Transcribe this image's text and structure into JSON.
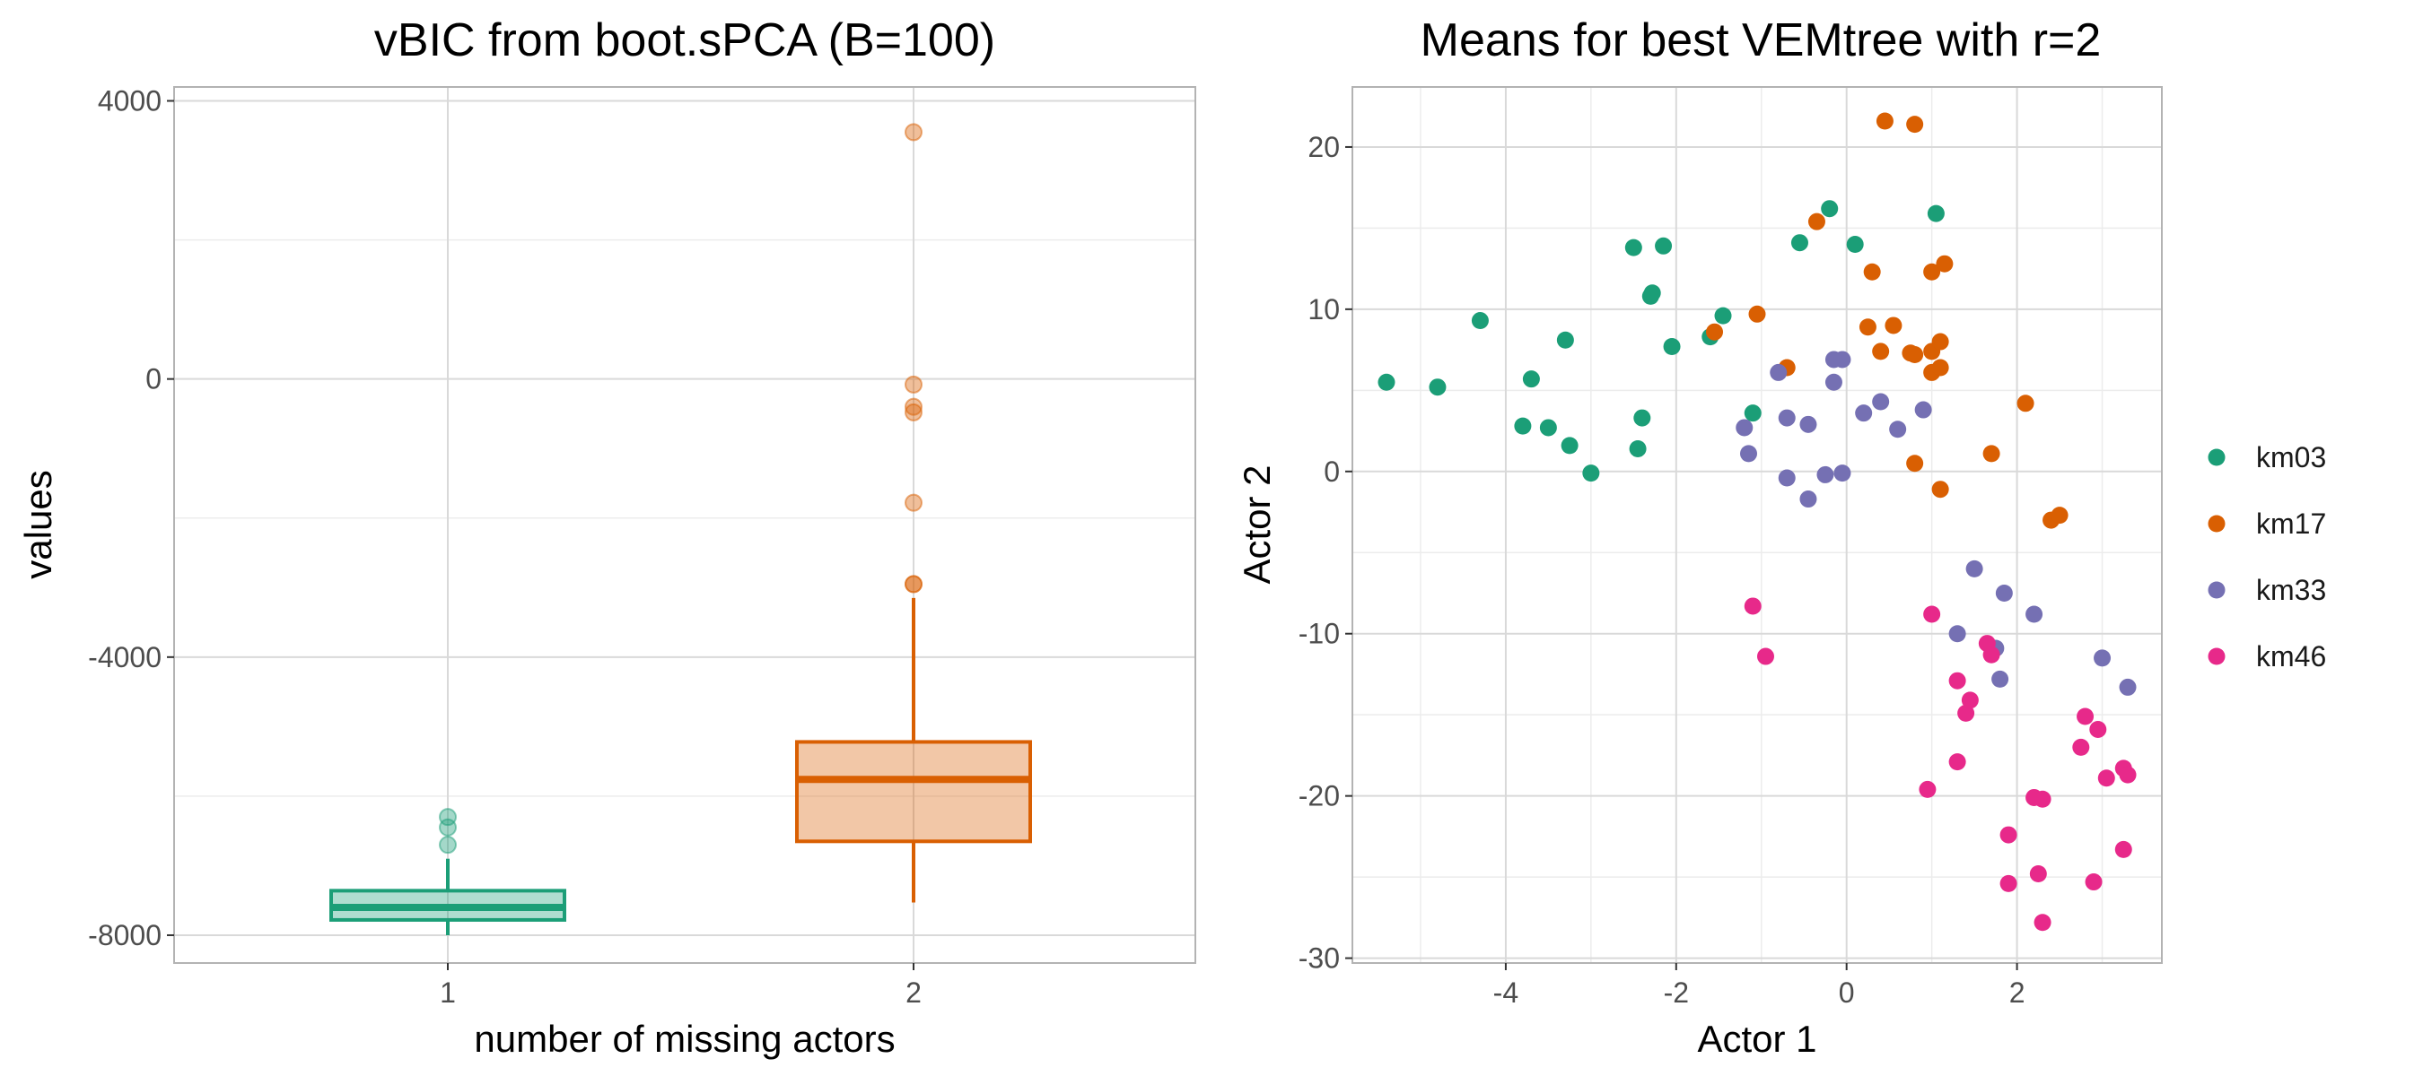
{
  "chart_data": [
    {
      "type": "box",
      "title": "vBIC from boot.sPCA (B=100)",
      "xlabel": "number of missing actors",
      "ylabel": "values",
      "categories": [
        "1",
        "2"
      ],
      "ylim": [
        -8400,
        4200
      ],
      "yticks": [
        4000,
        0,
        -4000,
        -8000
      ],
      "ytick_labels": [
        "4000",
        "0",
        "-4000",
        "-8000"
      ],
      "grid": true,
      "boxes": [
        {
          "category": "1",
          "color": "#1b9e77",
          "min": -8000,
          "q1": -7780,
          "median": -7600,
          "q3": -7360,
          "max": -6900,
          "outliers": [
            -6300,
            -6450,
            -6700
          ]
        },
        {
          "category": "2",
          "color": "#d95f02",
          "min": -7530,
          "q1": -6650,
          "median": -5760,
          "q3": -5220,
          "max": -3150,
          "outliers": [
            3550,
            -80,
            -400,
            -480,
            -1780,
            -2950,
            -2950
          ]
        }
      ]
    },
    {
      "type": "scatter",
      "title": "Means for best VEMtree with r=2",
      "xlabel": "Actor 1",
      "ylabel": "Actor 2",
      "xlim": [
        -5.8,
        3.7
      ],
      "ylim": [
        -30.3,
        23.7
      ],
      "xticks": [
        -4,
        -2,
        0,
        2
      ],
      "xtick_labels": [
        "-4",
        "-2",
        "0",
        "2"
      ],
      "yticks": [
        20,
        10,
        0,
        -10,
        -20,
        -30
      ],
      "ytick_labels": [
        "20",
        "10",
        "0",
        "-10",
        "-20",
        "-30"
      ],
      "grid": true,
      "legend_position": "right",
      "series": [
        {
          "name": "km03",
          "color": "#1b9e77",
          "points": [
            [
              -5.4,
              5.5
            ],
            [
              -4.8,
              5.2
            ],
            [
              -4.3,
              9.3
            ],
            [
              -3.8,
              2.8
            ],
            [
              -3.7,
              5.7
            ],
            [
              -3.5,
              2.7
            ],
            [
              -3.3,
              8.1
            ],
            [
              -3.25,
              1.6
            ],
            [
              -3.0,
              -0.1
            ],
            [
              -2.5,
              13.8
            ],
            [
              -2.45,
              1.4
            ],
            [
              -2.4,
              3.3
            ],
            [
              -2.3,
              10.8
            ],
            [
              -2.28,
              11.0
            ],
            [
              -2.15,
              13.9
            ],
            [
              -2.05,
              7.7
            ],
            [
              -1.6,
              8.3
            ],
            [
              -1.45,
              9.6
            ],
            [
              -1.1,
              3.6
            ],
            [
              -0.55,
              14.1
            ],
            [
              -0.2,
              16.2
            ],
            [
              0.1,
              14.0
            ],
            [
              1.05,
              15.9
            ]
          ]
        },
        {
          "name": "km17",
          "color": "#d95f02",
          "points": [
            [
              0.45,
              21.6
            ],
            [
              0.8,
              21.4
            ],
            [
              -0.35,
              15.4
            ],
            [
              0.3,
              12.3
            ],
            [
              1.0,
              12.3
            ],
            [
              1.15,
              12.8
            ],
            [
              -1.55,
              8.6
            ],
            [
              -1.05,
              9.7
            ],
            [
              0.25,
              8.9
            ],
            [
              0.55,
              9.0
            ],
            [
              -0.7,
              6.4
            ],
            [
              0.4,
              7.4
            ],
            [
              0.75,
              7.3
            ],
            [
              0.8,
              7.2
            ],
            [
              1.0,
              7.4
            ],
            [
              1.1,
              8.0
            ],
            [
              1.0,
              6.1
            ],
            [
              1.1,
              6.4
            ],
            [
              2.1,
              4.2
            ],
            [
              1.7,
              1.1
            ],
            [
              0.8,
              0.5
            ],
            [
              1.1,
              -1.1
            ],
            [
              2.4,
              -3.0
            ],
            [
              2.5,
              -2.7
            ]
          ]
        },
        {
          "name": "km33",
          "color": "#7570b3",
          "points": [
            [
              -0.8,
              6.1
            ],
            [
              -0.15,
              6.9
            ],
            [
              -0.05,
              6.9
            ],
            [
              -0.15,
              5.5
            ],
            [
              -1.2,
              2.7
            ],
            [
              -0.7,
              3.3
            ],
            [
              -0.45,
              2.9
            ],
            [
              0.2,
              3.6
            ],
            [
              0.4,
              4.3
            ],
            [
              0.9,
              3.8
            ],
            [
              0.6,
              2.6
            ],
            [
              -1.15,
              1.1
            ],
            [
              -0.7,
              -0.4
            ],
            [
              -0.25,
              -0.2
            ],
            [
              -0.05,
              -0.1
            ],
            [
              -0.45,
              -1.7
            ],
            [
              1.5,
              -6.0
            ],
            [
              1.85,
              -7.5
            ],
            [
              2.2,
              -8.8
            ],
            [
              1.3,
              -10.0
            ],
            [
              1.75,
              -10.9
            ],
            [
              3.0,
              -11.5
            ],
            [
              1.8,
              -12.8
            ],
            [
              3.3,
              -13.3
            ]
          ]
        },
        {
          "name": "km46",
          "color": "#e7298a",
          "points": [
            [
              -1.1,
              -8.3
            ],
            [
              -0.95,
              -11.4
            ],
            [
              1.0,
              -8.8
            ],
            [
              1.65,
              -10.6
            ],
            [
              1.7,
              -11.3
            ],
            [
              1.3,
              -12.9
            ],
            [
              1.4,
              -14.9
            ],
            [
              1.45,
              -14.1
            ],
            [
              2.8,
              -15.1
            ],
            [
              2.95,
              -15.9
            ],
            [
              2.75,
              -17.0
            ],
            [
              1.3,
              -17.9
            ],
            [
              3.25,
              -18.3
            ],
            [
              3.3,
              -18.7
            ],
            [
              3.05,
              -18.9
            ],
            [
              0.95,
              -19.6
            ],
            [
              2.2,
              -20.1
            ],
            [
              2.3,
              -20.2
            ],
            [
              1.9,
              -22.4
            ],
            [
              3.25,
              -23.3
            ],
            [
              2.25,
              -24.8
            ],
            [
              1.9,
              -25.4
            ],
            [
              2.9,
              -25.3
            ],
            [
              2.3,
              -27.8
            ]
          ]
        }
      ]
    }
  ]
}
